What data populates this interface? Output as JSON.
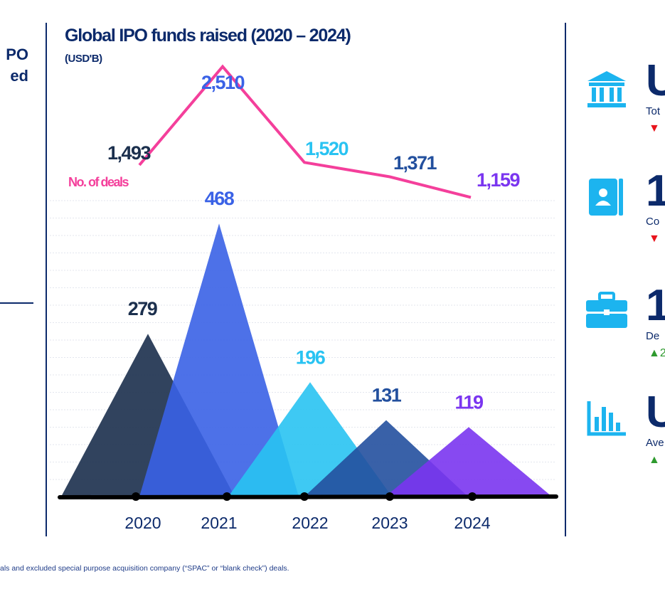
{
  "left_panel": {
    "line1": "PO",
    "line2": "ed"
  },
  "chart_data": {
    "type": "area",
    "title": "Global IPO funds raised (2020 – 2024)",
    "subtitle": "(USD'B)",
    "categories": [
      "2020",
      "2021",
      "2022",
      "2023",
      "2024"
    ],
    "series": [
      {
        "name": "Funds raised (USD'B)",
        "values": [
          279,
          468,
          196,
          131,
          119
        ],
        "labels": [
          "279",
          "468",
          "196",
          "131",
          "119"
        ]
      },
      {
        "name": "No. of deals",
        "values": [
          1493,
          2510,
          1520,
          1371,
          1159
        ],
        "labels": [
          "1,493",
          "2,510",
          "1,520",
          "1,371",
          "1,159"
        ]
      }
    ],
    "line_legend": "No. of deals",
    "ylim": [
      0,
      500
    ]
  },
  "colors": {
    "navy": "#0c2a6b",
    "peak_2020": "#1b2f4d",
    "peak_2021": "#3a62e6",
    "peak_2022": "#29c3f2",
    "peak_2023": "#23509e",
    "peak_2024": "#7a35f0",
    "line": "#f43f9b",
    "icon": "#1cb4ef"
  },
  "stats": [
    {
      "icon": "bank-icon",
      "value": "U",
      "label": "Tot",
      "arrow": "▼",
      "direction": "down",
      "change": ""
    },
    {
      "icon": "contact-card-icon",
      "value": "1,",
      "label": "Co",
      "arrow": "▼",
      "direction": "down",
      "change": ""
    },
    {
      "icon": "briefcase-icon",
      "value": "1(",
      "label": "De",
      "arrow": "▲",
      "direction": "up",
      "change": "2"
    },
    {
      "icon": "bar-chart-icon",
      "value": "U",
      "label": "Ave",
      "arrow": "▲",
      "direction": "up",
      "change": ""
    }
  ],
  "footnote": "als and excluded special purpose acquisition company (“SPAC” or “blank check”) deals."
}
